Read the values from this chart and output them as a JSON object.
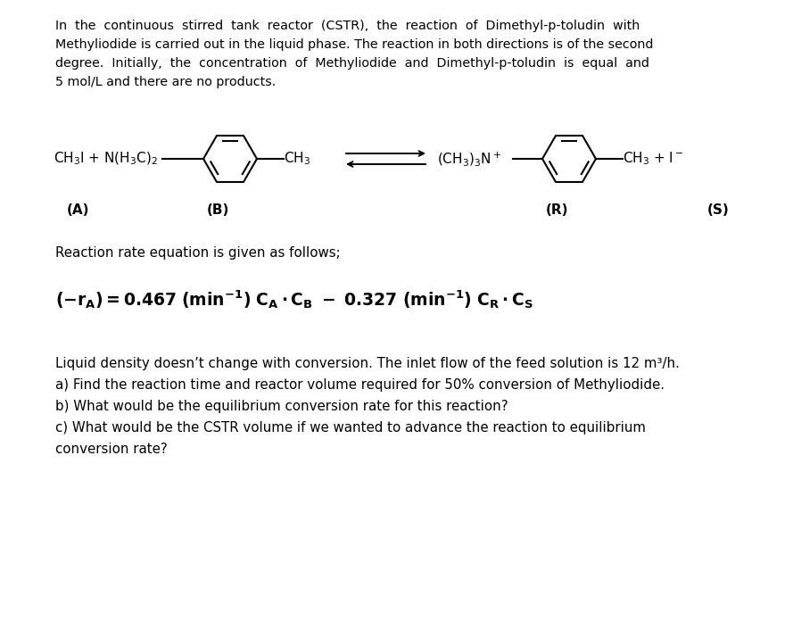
{
  "bg_color": "#ffffff",
  "text_color": "#000000",
  "fig_width": 8.89,
  "fig_height": 6.96,
  "lines_p1": [
    "In  the  continuous  stirred  tank  reactor  (CSTR),  the  reaction  of  Dimethyl-p-toludin  with",
    "Methyliodide is carried out in the liquid phase. The reaction in both directions is of the second",
    "degree.  Initially,  the  concentration  of  Methyliodide  and  Dimethyl-p-toludin  is  equal  and",
    "5 mol/L and there are no products."
  ],
  "label_A": "(A)",
  "label_B": "(B)",
  "label_R": "(R)",
  "label_S": "(S)",
  "rxn_rate_label": "Reaction rate equation is given as follows;",
  "liquid_density_text": "Liquid density doesn’t change with conversion. The inlet flow of the feed solution is 12 m³/h.",
  "part_a": "a) Find the reaction time and reactor volume required for 50% conversion of Methyliodide.",
  "part_b": "b) What would be the equilibrium conversion rate for this reaction?",
  "part_c1": "c) What would be the CSTR volume if we wanted to advance the reaction to equilibrium",
  "part_c2": "conversion rate?"
}
